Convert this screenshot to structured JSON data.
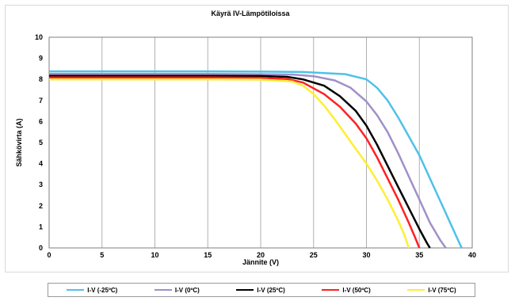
{
  "chart_data": {
    "type": "line",
    "title": "Käyrä IV-Lämpötiloissa",
    "xlabel": "Jännite (V)",
    "ylabel": "Sähkövirta (A)",
    "xlim": [
      0,
      40
    ],
    "ylim": [
      0,
      10
    ],
    "xticks": [
      "0",
      "5",
      "10",
      "15",
      "20",
      "25",
      "30",
      "35",
      "40"
    ],
    "yticks": [
      "0",
      "1",
      "2",
      "3",
      "4",
      "5",
      "6",
      "7",
      "8",
      "9",
      "10"
    ],
    "grid": "vertical",
    "legend_position": "bottom",
    "series": [
      {
        "name": "I-V (-25ºC)",
        "color": "#4fc1e9",
        "points": [
          [
            0,
            8.38
          ],
          [
            5,
            8.38
          ],
          [
            10,
            8.38
          ],
          [
            15,
            8.38
          ],
          [
            20,
            8.37
          ],
          [
            24,
            8.35
          ],
          [
            26,
            8.3
          ],
          [
            28,
            8.25
          ],
          [
            30,
            8.0
          ],
          [
            31,
            7.6
          ],
          [
            32,
            7.0
          ],
          [
            33,
            6.2
          ],
          [
            34,
            5.3
          ],
          [
            35,
            4.4
          ],
          [
            36,
            3.3
          ],
          [
            37,
            2.2
          ],
          [
            38,
            1.1
          ],
          [
            39,
            0
          ]
        ]
      },
      {
        "name": "I-V (0ºC)",
        "color": "#a090c8",
        "points": [
          [
            0,
            8.26
          ],
          [
            5,
            8.26
          ],
          [
            10,
            8.26
          ],
          [
            15,
            8.26
          ],
          [
            20,
            8.25
          ],
          [
            23,
            8.23
          ],
          [
            25,
            8.15
          ],
          [
            27,
            7.95
          ],
          [
            28.5,
            7.6
          ],
          [
            30,
            6.95
          ],
          [
            31,
            6.3
          ],
          [
            32,
            5.5
          ],
          [
            33,
            4.5
          ],
          [
            34,
            3.4
          ],
          [
            35,
            2.3
          ],
          [
            36,
            1.2
          ],
          [
            37,
            0.35
          ],
          [
            37.5,
            0
          ]
        ]
      },
      {
        "name": "I-V (25ºC)",
        "color": "#000000",
        "points": [
          [
            0,
            8.17
          ],
          [
            5,
            8.17
          ],
          [
            10,
            8.17
          ],
          [
            15,
            8.17
          ],
          [
            20,
            8.16
          ],
          [
            22.5,
            8.12
          ],
          [
            24,
            8.0
          ],
          [
            26,
            7.7
          ],
          [
            27.5,
            7.2
          ],
          [
            29,
            6.5
          ],
          [
            30,
            5.8
          ],
          [
            31,
            4.9
          ],
          [
            32,
            3.9
          ],
          [
            33,
            2.9
          ],
          [
            34,
            1.9
          ],
          [
            35,
            0.9
          ],
          [
            35.7,
            0.25
          ],
          [
            36,
            0
          ]
        ]
      },
      {
        "name": "I-V (50ºC)",
        "color": "#ff2020",
        "points": [
          [
            0,
            8.09
          ],
          [
            5,
            8.09
          ],
          [
            10,
            8.09
          ],
          [
            15,
            8.09
          ],
          [
            20,
            8.08
          ],
          [
            22.5,
            8.02
          ],
          [
            24,
            7.85
          ],
          [
            26,
            7.3
          ],
          [
            27.5,
            6.7
          ],
          [
            29,
            5.9
          ],
          [
            30,
            5.2
          ],
          [
            31,
            4.3
          ],
          [
            32,
            3.3
          ],
          [
            33,
            2.3
          ],
          [
            34,
            1.2
          ],
          [
            34.6,
            0.5
          ],
          [
            35,
            0
          ]
        ]
      },
      {
        "name": "I-V (75ºC)",
        "color": "#ffee33",
        "points": [
          [
            0,
            8.0
          ],
          [
            5,
            8.0
          ],
          [
            10,
            8.0
          ],
          [
            15,
            8.0
          ],
          [
            20,
            7.99
          ],
          [
            23,
            7.9
          ],
          [
            24,
            7.7
          ],
          [
            25,
            7.3
          ],
          [
            26,
            6.75
          ],
          [
            27,
            6.1
          ],
          [
            28,
            5.4
          ],
          [
            29,
            4.7
          ],
          [
            30,
            4.0
          ],
          [
            31,
            3.2
          ],
          [
            32,
            2.3
          ],
          [
            33,
            1.3
          ],
          [
            33.6,
            0.6
          ],
          [
            34,
            0
          ]
        ]
      }
    ]
  }
}
